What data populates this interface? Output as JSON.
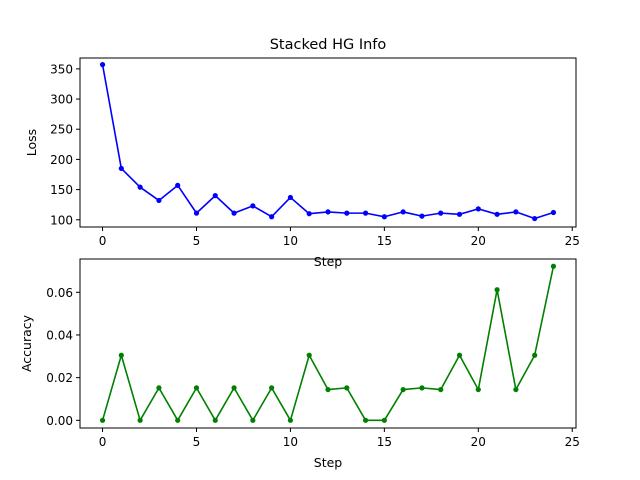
{
  "figure": {
    "title": "Stacked HG Info"
  },
  "chart_data": [
    {
      "type": "line",
      "xlabel": "Step",
      "ylabel": "Loss",
      "xlim": [
        -1.2,
        25.2
      ],
      "ylim": [
        88,
        368
      ],
      "xticks": [
        0,
        5,
        10,
        15,
        20,
        25
      ],
      "xtick_labels": [
        "0",
        "5",
        "10",
        "15",
        "20",
        "25"
      ],
      "yticks": [
        100,
        150,
        200,
        250,
        300,
        350
      ],
      "ytick_labels": [
        "100",
        "150",
        "200",
        "250",
        "300",
        "350"
      ],
      "grid": false,
      "series": [
        {
          "color": "#0000ff",
          "marker": "circle",
          "x": [
            0,
            1,
            2,
            3,
            4,
            5,
            6,
            7,
            8,
            9,
            10,
            11,
            12,
            13,
            14,
            15,
            16,
            17,
            18,
            19,
            20,
            21,
            22,
            23,
            24
          ],
          "y": [
            357,
            185,
            154,
            132,
            157,
            111,
            140,
            111,
            123,
            105,
            137,
            110,
            113,
            111,
            111,
            105,
            113,
            106,
            111,
            109,
            118,
            109,
            113,
            102,
            112
          ]
        }
      ]
    },
    {
      "type": "line",
      "xlabel": "Step",
      "ylabel": "Accuracy",
      "xlim": [
        -1.2,
        25.2
      ],
      "ylim": [
        -0.0036,
        0.0756
      ],
      "xticks": [
        0,
        5,
        10,
        15,
        20,
        25
      ],
      "xtick_labels": [
        "0",
        "5",
        "10",
        "15",
        "20",
        "25"
      ],
      "yticks": [
        0.0,
        0.02,
        0.04,
        0.06
      ],
      "ytick_labels": [
        "0.00",
        "0.02",
        "0.04",
        "0.06"
      ],
      "grid": false,
      "series": [
        {
          "color": "#008000",
          "marker": "circle",
          "x": [
            0,
            1,
            2,
            3,
            4,
            5,
            6,
            7,
            8,
            9,
            10,
            11,
            12,
            13,
            14,
            15,
            16,
            17,
            18,
            19,
            20,
            21,
            22,
            23,
            24
          ],
          "y": [
            0.0,
            0.0305,
            0.0,
            0.0152,
            0.0,
            0.0152,
            0.0,
            0.0152,
            0.0,
            0.0152,
            0.0,
            0.0305,
            0.0144,
            0.0152,
            0.0,
            0.0,
            0.0144,
            0.0152,
            0.0144,
            0.0305,
            0.0144,
            0.0612,
            0.0144,
            0.0305,
            0.0722
          ]
        }
      ]
    }
  ]
}
